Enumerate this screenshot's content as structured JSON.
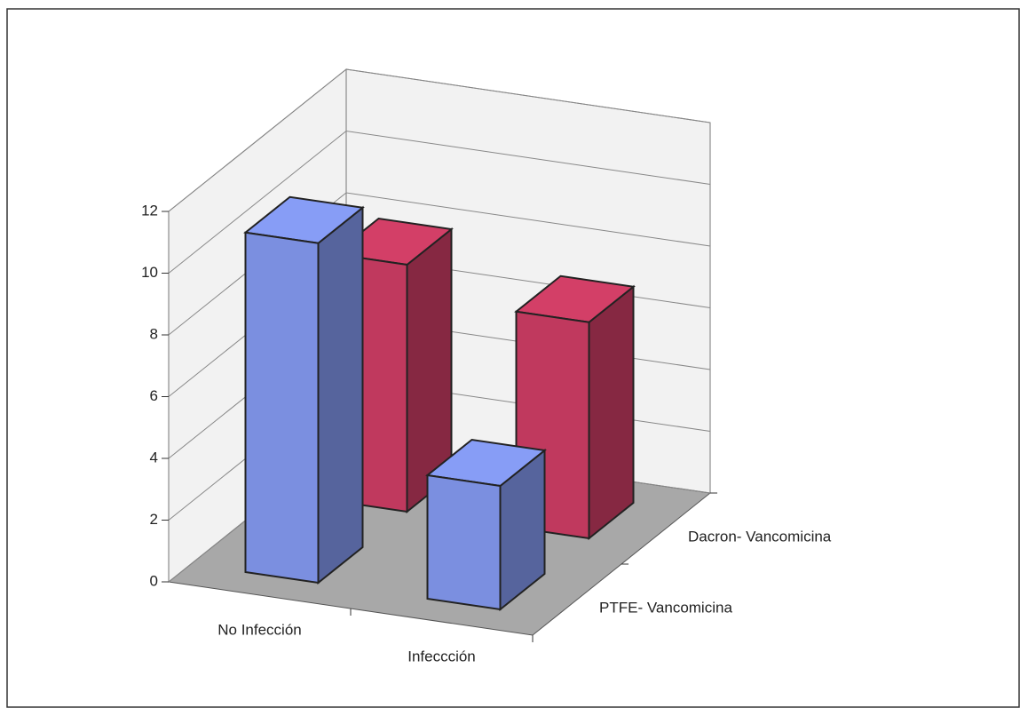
{
  "chart_data": {
    "type": "bar3d",
    "categories": [
      "No Infección",
      "Infeccción"
    ],
    "series": [
      {
        "name": "PTFE- Vancomicina",
        "color": "#7b8fe0",
        "values": [
          11,
          4
        ]
      },
      {
        "name": "Dacron- Vancomicina",
        "color": "#c0395e",
        "values": [
          8,
          7
        ]
      }
    ],
    "ylim": [
      0,
      12
    ],
    "yticks": [
      0,
      2,
      4,
      6,
      8,
      10,
      12
    ],
    "grid": true
  }
}
